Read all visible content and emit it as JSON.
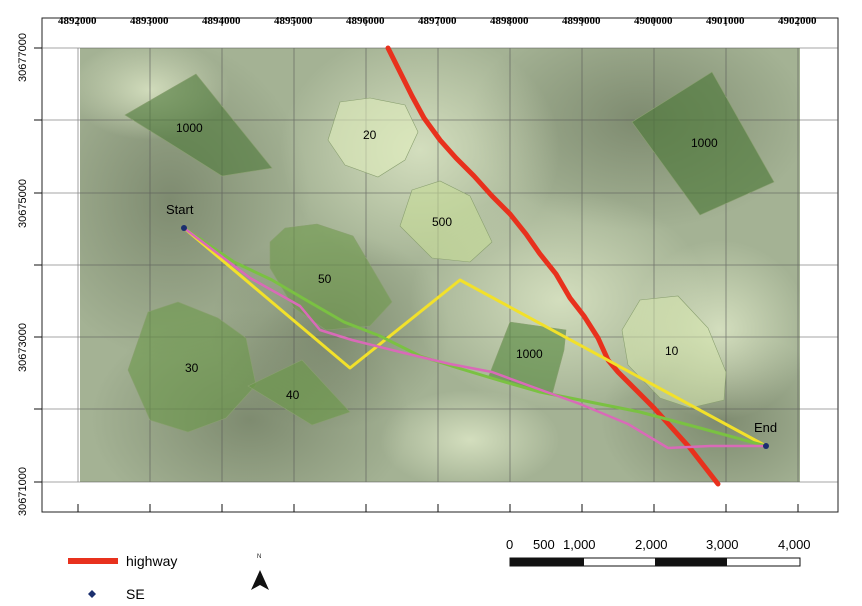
{
  "map": {
    "top_ticks": [
      "4892000",
      "4893000",
      "4894000",
      "4895000",
      "4896000",
      "4897000",
      "4898000",
      "4899000",
      "4900000",
      "4901000",
      "4902000"
    ],
    "left_ticks": [
      "30677000",
      "30675000",
      "30673000",
      "30671000"
    ],
    "zones": [
      {
        "label": "1000"
      },
      {
        "label": "20"
      },
      {
        "label": "1000"
      },
      {
        "label": "500"
      },
      {
        "label": "50"
      },
      {
        "label": "30"
      },
      {
        "label": "40"
      },
      {
        "label": "1000"
      },
      {
        "label": "10"
      }
    ],
    "points": {
      "start": "Start",
      "end": "End"
    },
    "colors": {
      "highway": "#e8311d",
      "route_yellow": "#f2e12a",
      "route_green": "#7ac142",
      "route_pink": "#d96ab8",
      "point": "#1b2f6e"
    }
  },
  "legend": {
    "highway": "highway",
    "se": "SE",
    "north": "N"
  },
  "scalebar": {
    "labels": [
      "0",
      "500",
      "1,000",
      "2,000",
      "3,000",
      "4,000"
    ]
  }
}
